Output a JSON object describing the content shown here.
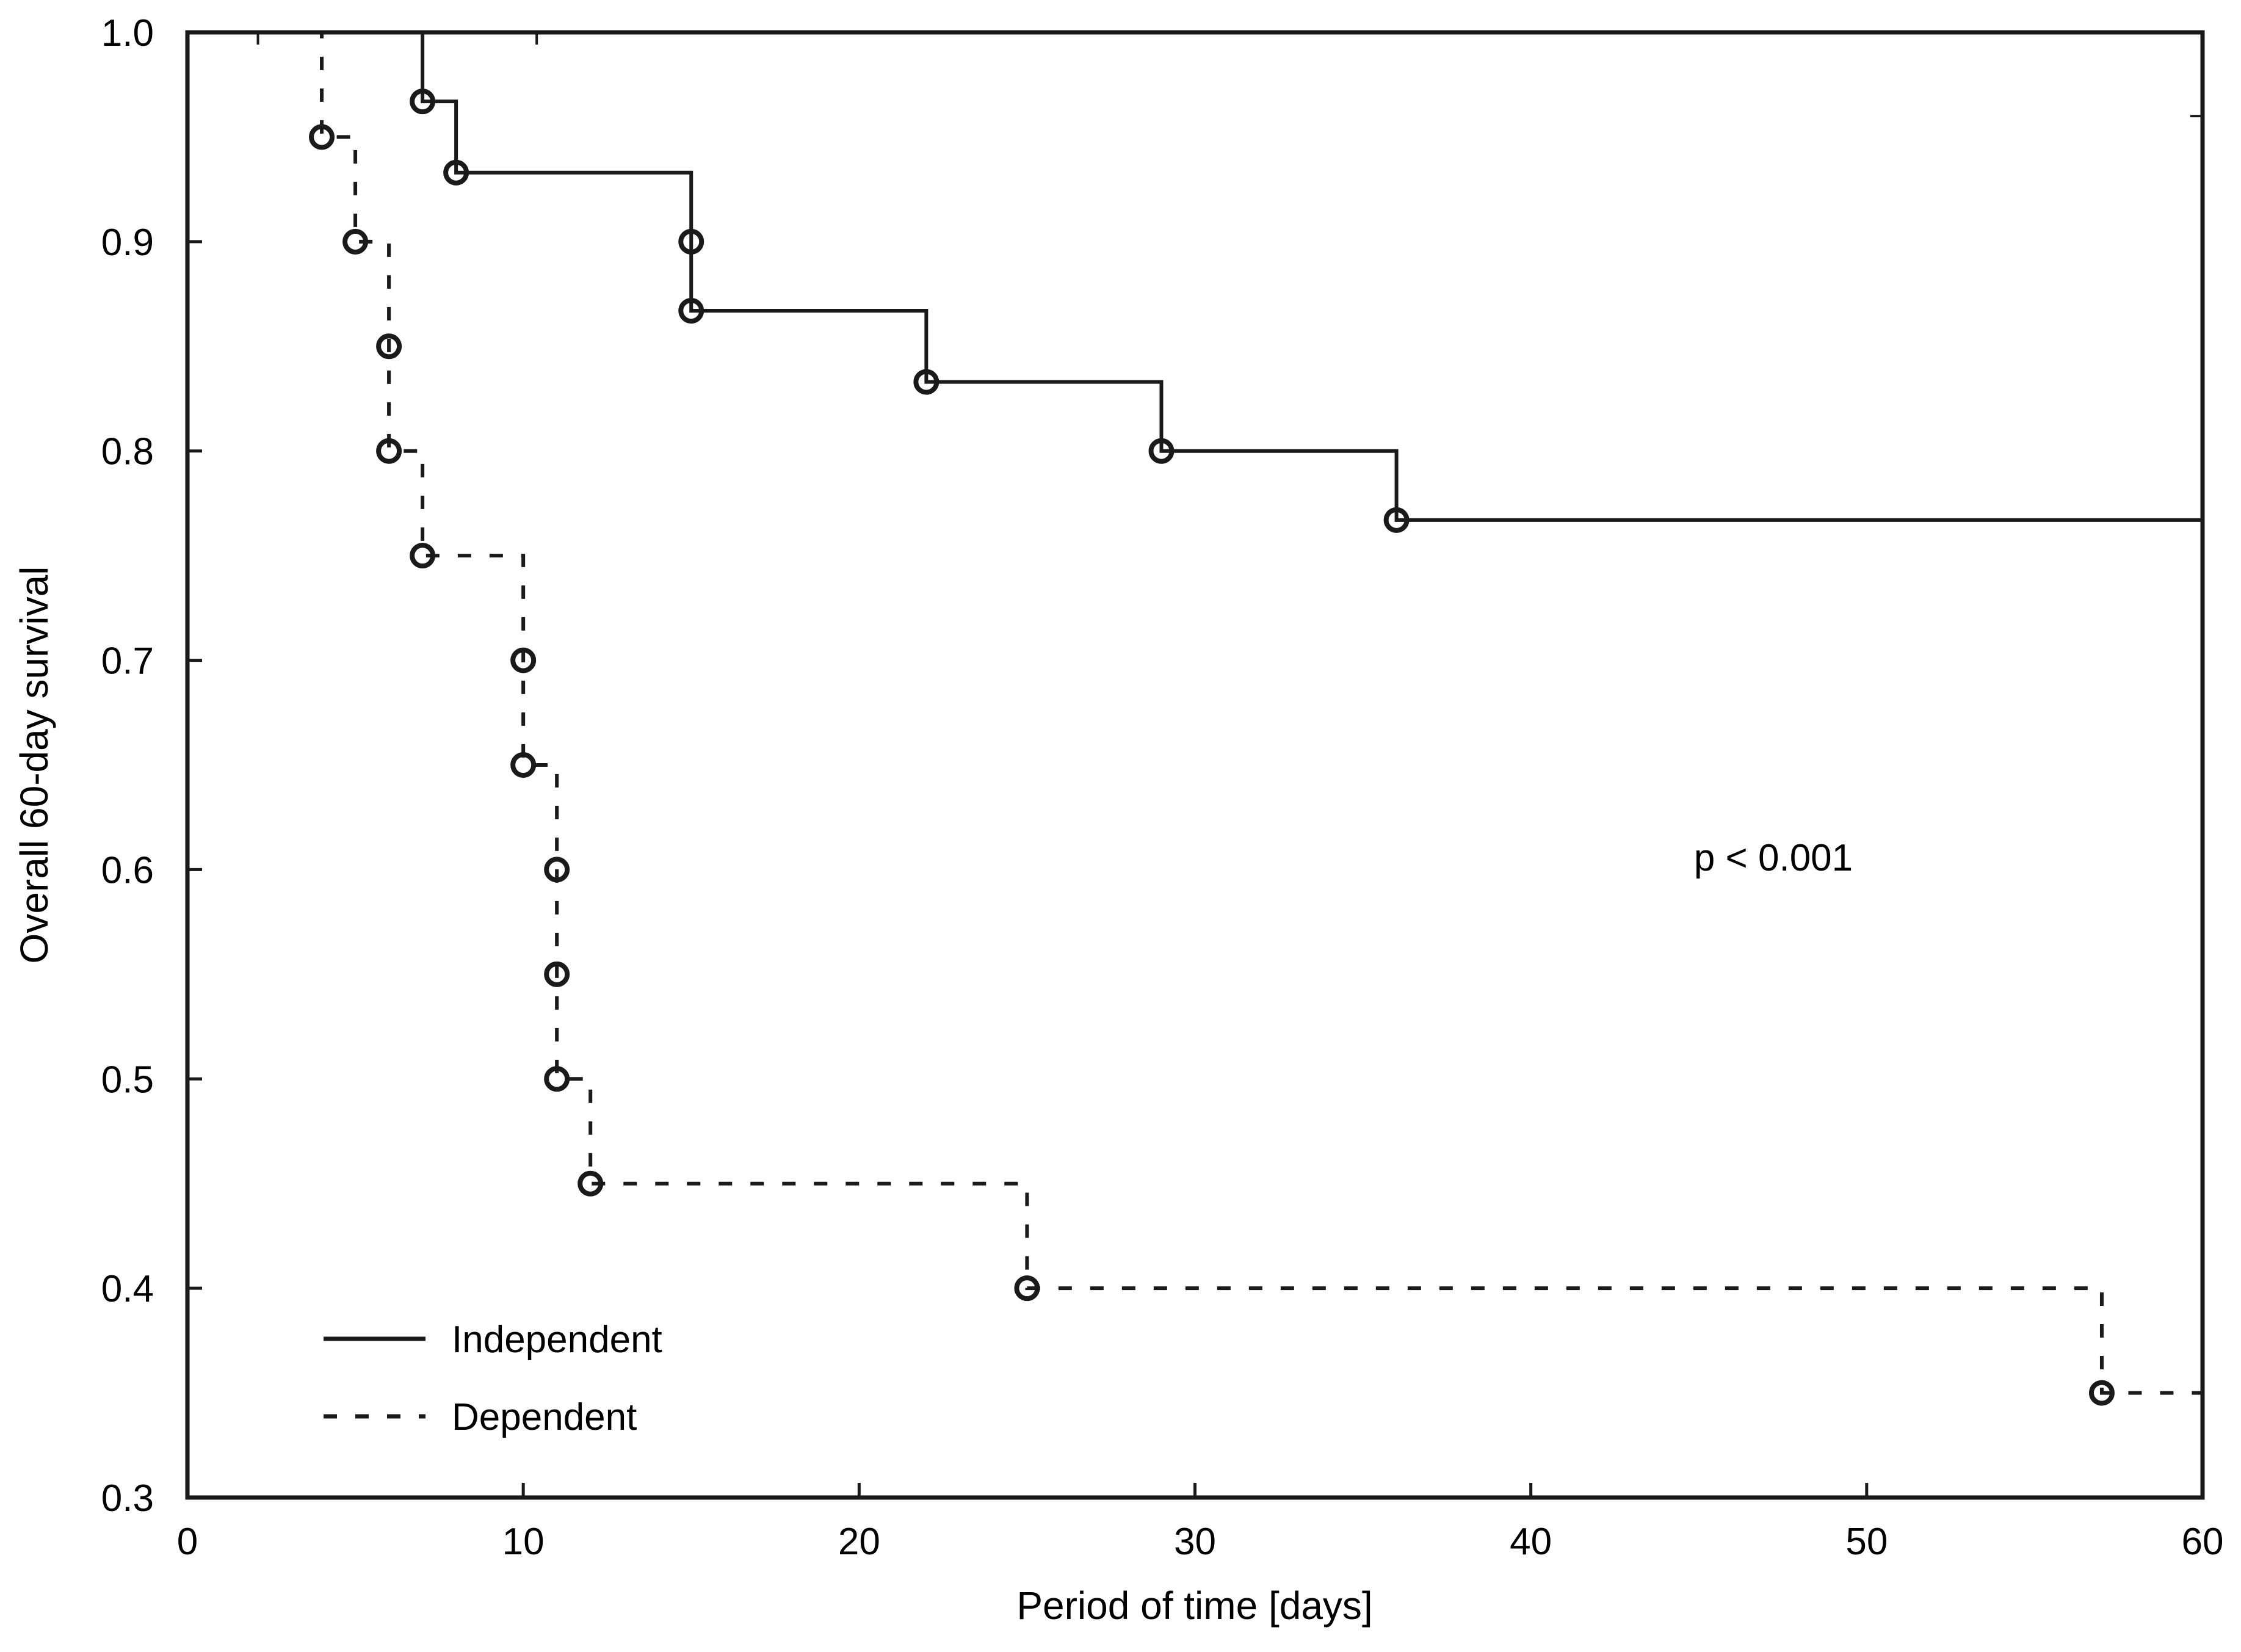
{
  "chart_data": {
    "type": "line",
    "subtype": "kaplan-meier-step-survival",
    "title": "",
    "xlabel": "Period of time [days]",
    "ylabel": "Overall 60-day survival",
    "xlim": [
      0,
      60
    ],
    "ylim": [
      0.3,
      1.0
    ],
    "xticks": [
      0,
      10,
      20,
      30,
      40,
      50,
      60
    ],
    "yticks": [
      "1.0",
      "0.9",
      "0.8",
      "0.7",
      "0.6",
      "0.5",
      "0.4",
      "0.3"
    ],
    "grid": false,
    "legend_position": "inside-bottom-left",
    "annotation": "p < 0.001",
    "marker": "open-circle",
    "line_color": "#1a1a1a",
    "background_color": "#ffffff",
    "series": [
      {
        "name": "Independent",
        "line_style": "solid",
        "color": "#1a1a1a",
        "points": [
          [
            0,
            1.0
          ],
          [
            7,
            1.0
          ],
          [
            7,
            0.967
          ],
          [
            8,
            0.967
          ],
          [
            8,
            0.933
          ],
          [
            15,
            0.933
          ],
          [
            15,
            0.867
          ],
          [
            22,
            0.867
          ],
          [
            22,
            0.833
          ],
          [
            29,
            0.833
          ],
          [
            29,
            0.8
          ],
          [
            36,
            0.8
          ],
          [
            36,
            0.767
          ],
          [
            60,
            0.767
          ]
        ],
        "event_markers": [
          [
            7,
            0.967
          ],
          [
            8,
            0.933
          ],
          [
            15,
            0.9
          ],
          [
            15,
            0.867
          ],
          [
            22,
            0.833
          ],
          [
            29,
            0.8
          ],
          [
            36,
            0.767
          ]
        ]
      },
      {
        "name": "Dependent",
        "line_style": "dashed",
        "color": "#1a1a1a",
        "points": [
          [
            0,
            1.0
          ],
          [
            4,
            1.0
          ],
          [
            4,
            0.95
          ],
          [
            5,
            0.95
          ],
          [
            5,
            0.9
          ],
          [
            6,
            0.9
          ],
          [
            6,
            0.8
          ],
          [
            7,
            0.8
          ],
          [
            7,
            0.75
          ],
          [
            10,
            0.75
          ],
          [
            10,
            0.65
          ],
          [
            11,
            0.65
          ],
          [
            11,
            0.5
          ],
          [
            12,
            0.5
          ],
          [
            12,
            0.45
          ],
          [
            25,
            0.45
          ],
          [
            25,
            0.4
          ],
          [
            57,
            0.4
          ],
          [
            57,
            0.35
          ],
          [
            60,
            0.35
          ]
        ],
        "event_markers": [
          [
            4,
            0.95
          ],
          [
            5,
            0.9
          ],
          [
            6,
            0.85
          ],
          [
            6,
            0.8
          ],
          [
            7,
            0.75
          ],
          [
            10,
            0.7
          ],
          [
            10,
            0.65
          ],
          [
            11,
            0.6
          ],
          [
            11,
            0.55
          ],
          [
            11,
            0.5
          ],
          [
            12,
            0.45
          ],
          [
            25,
            0.4
          ],
          [
            57,
            0.35
          ]
        ]
      }
    ],
    "frame_tick_marks": {
      "top_days": [
        2.1,
        10.4
      ],
      "right_values": [
        0.96
      ]
    }
  }
}
